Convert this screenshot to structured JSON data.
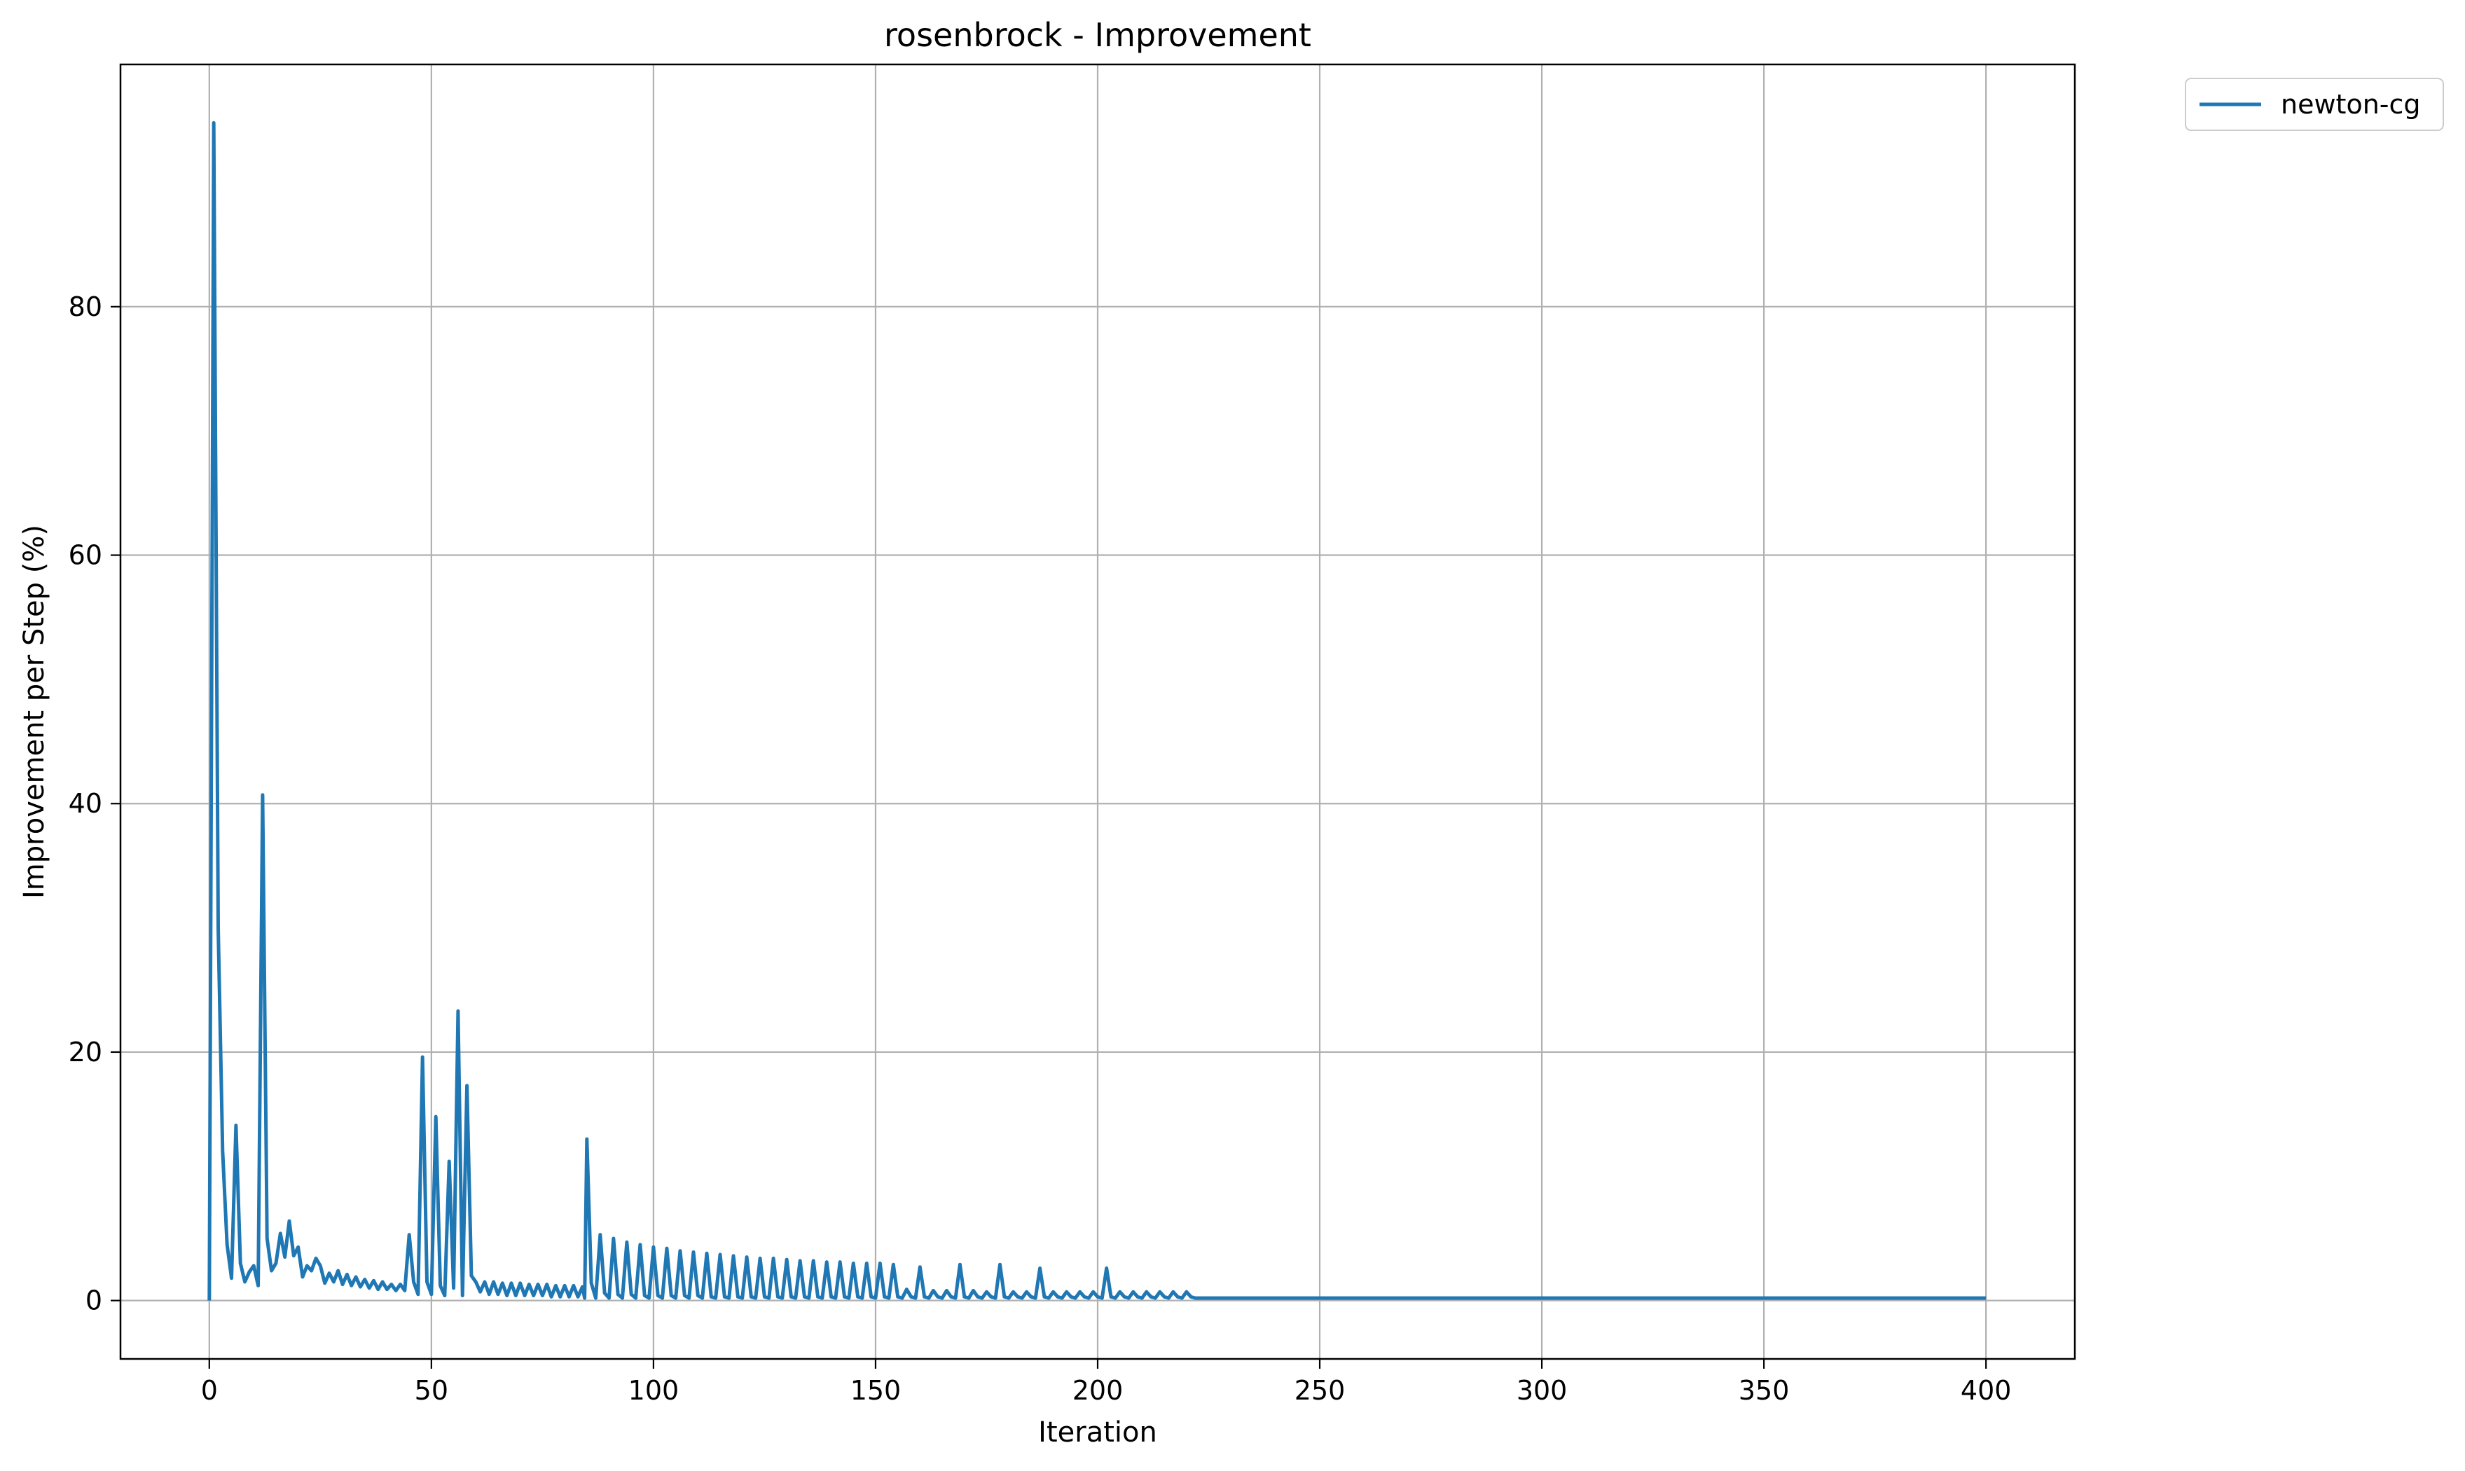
{
  "chart_data": {
    "type": "line",
    "title": "rosenbrock - Improvement",
    "xlabel": "Iteration",
    "ylabel": "Improvement per Step (%)",
    "xlim": [
      -20,
      420
    ],
    "ylim": [
      -4.7,
      99.5
    ],
    "xticks": [
      0,
      50,
      100,
      150,
      200,
      250,
      300,
      350,
      400
    ],
    "yticks": [
      0,
      20,
      40,
      60,
      80
    ],
    "grid": true,
    "legend_position": "outside-top-right",
    "series": [
      {
        "name": "newton-cg",
        "color": "#1f77b4",
        "points": [
          [
            0,
            0
          ],
          [
            1,
            94.8
          ],
          [
            2,
            30
          ],
          [
            3,
            12
          ],
          [
            4,
            4.5
          ],
          [
            5,
            1.8
          ],
          [
            6,
            14.1
          ],
          [
            7,
            3
          ],
          [
            8,
            1.5
          ],
          [
            9,
            2.3
          ],
          [
            10,
            2.8
          ],
          [
            11,
            1.2
          ],
          [
            12,
            40.7
          ],
          [
            13,
            5
          ],
          [
            14,
            2.4
          ],
          [
            15,
            3.0
          ],
          [
            16,
            5.4
          ],
          [
            17,
            3.5
          ],
          [
            18,
            6.4
          ],
          [
            19,
            3.6
          ],
          [
            20,
            4.3
          ],
          [
            21,
            1.9
          ],
          [
            22,
            2.8
          ],
          [
            23,
            2.4
          ],
          [
            24,
            3.4
          ],
          [
            25,
            2.8
          ],
          [
            26,
            1.4
          ],
          [
            27,
            2.2
          ],
          [
            28,
            1.5
          ],
          [
            29,
            2.4
          ],
          [
            30,
            1.3
          ],
          [
            31,
            2.1
          ],
          [
            32,
            1.2
          ],
          [
            33,
            1.9
          ],
          [
            34,
            1.1
          ],
          [
            35,
            1.7
          ],
          [
            36,
            1.0
          ],
          [
            37,
            1.6
          ],
          [
            38,
            0.9
          ],
          [
            39,
            1.5
          ],
          [
            40,
            0.9
          ],
          [
            41,
            1.3
          ],
          [
            42,
            0.8
          ],
          [
            43,
            1.3
          ],
          [
            44,
            0.8
          ],
          [
            45,
            5.3
          ],
          [
            46,
            1.5
          ],
          [
            47,
            0.5
          ],
          [
            48,
            19.6
          ],
          [
            49,
            1.5
          ],
          [
            50,
            0.5
          ],
          [
            51,
            14.8
          ],
          [
            52,
            1.2
          ],
          [
            53,
            0.4
          ],
          [
            54,
            11.2
          ],
          [
            55,
            1.0
          ],
          [
            56,
            23.3
          ],
          [
            57,
            0.4
          ],
          [
            58,
            17.3
          ],
          [
            59,
            2.0
          ],
          [
            60,
            1.5
          ],
          [
            61,
            0.7
          ],
          [
            62,
            1.5
          ],
          [
            63,
            0.5
          ],
          [
            64,
            1.5
          ],
          [
            65,
            0.5
          ],
          [
            66,
            1.4
          ],
          [
            67,
            0.4
          ],
          [
            68,
            1.4
          ],
          [
            69,
            0.4
          ],
          [
            70,
            1.4
          ],
          [
            71,
            0.4
          ],
          [
            72,
            1.3
          ],
          [
            73,
            0.4
          ],
          [
            74,
            1.3
          ],
          [
            75,
            0.4
          ],
          [
            76,
            1.3
          ],
          [
            77,
            0.3
          ],
          [
            78,
            1.2
          ],
          [
            79,
            0.3
          ],
          [
            80,
            1.2
          ],
          [
            81,
            0.3
          ],
          [
            82,
            1.2
          ],
          [
            83,
            0.3
          ],
          [
            84,
            1.1
          ],
          [
            84.5,
            0.2
          ],
          [
            85,
            13.0
          ],
          [
            86,
            1.4
          ],
          [
            87,
            0.2
          ],
          [
            88,
            5.3
          ],
          [
            89,
            0.6
          ],
          [
            90,
            0.2
          ],
          [
            91,
            5.0
          ],
          [
            92,
            0.5
          ],
          [
            93,
            0.2
          ],
          [
            94,
            4.7
          ],
          [
            95,
            0.5
          ],
          [
            96,
            0.2
          ],
          [
            97,
            4.5
          ],
          [
            98,
            0.4
          ],
          [
            99,
            0.2
          ],
          [
            100,
            4.3
          ],
          [
            101,
            0.4
          ],
          [
            102,
            0.2
          ],
          [
            103,
            4.2
          ],
          [
            104,
            0.4
          ],
          [
            105,
            0.2
          ],
          [
            106,
            4.0
          ],
          [
            107,
            0.4
          ],
          [
            108,
            0.2
          ],
          [
            109,
            3.9
          ],
          [
            110,
            0.4
          ],
          [
            111,
            0.2
          ],
          [
            112,
            3.8
          ],
          [
            113,
            0.3
          ],
          [
            114,
            0.2
          ],
          [
            115,
            3.7
          ],
          [
            116,
            0.3
          ],
          [
            117,
            0.2
          ],
          [
            118,
            3.6
          ],
          [
            119,
            0.3
          ],
          [
            120,
            0.2
          ],
          [
            121,
            3.5
          ],
          [
            122,
            0.3
          ],
          [
            123,
            0.2
          ],
          [
            124,
            3.4
          ],
          [
            125,
            0.3
          ],
          [
            126,
            0.2
          ],
          [
            127,
            3.4
          ],
          [
            128,
            0.3
          ],
          [
            129,
            0.2
          ],
          [
            130,
            3.3
          ],
          [
            131,
            0.3
          ],
          [
            132,
            0.2
          ],
          [
            133,
            3.2
          ],
          [
            134,
            0.3
          ],
          [
            135,
            0.2
          ],
          [
            136,
            3.2
          ],
          [
            137,
            0.3
          ],
          [
            138,
            0.2
          ],
          [
            139,
            3.1
          ],
          [
            140,
            0.3
          ],
          [
            141,
            0.2
          ],
          [
            142,
            3.1
          ],
          [
            143,
            0.3
          ],
          [
            144,
            0.2
          ],
          [
            145,
            3.0
          ],
          [
            146,
            0.3
          ],
          [
            147,
            0.2
          ],
          [
            148,
            3.0
          ],
          [
            149,
            0.3
          ],
          [
            150,
            0.2
          ],
          [
            151,
            3.0
          ],
          [
            152,
            0.3
          ],
          [
            153,
            0.2
          ],
          [
            154,
            2.9
          ],
          [
            155,
            0.3
          ],
          [
            156,
            0.2
          ],
          [
            157,
            0.9
          ],
          [
            158,
            0.3
          ],
          [
            159,
            0.2
          ],
          [
            160,
            2.7
          ],
          [
            161,
            0.3
          ],
          [
            162,
            0.2
          ],
          [
            163,
            0.8
          ],
          [
            164,
            0.3
          ],
          [
            165,
            0.2
          ],
          [
            166,
            0.8
          ],
          [
            167,
            0.3
          ],
          [
            168,
            0.2
          ],
          [
            169,
            2.9
          ],
          [
            170,
            0.3
          ],
          [
            171,
            0.2
          ],
          [
            172,
            0.8
          ],
          [
            173,
            0.3
          ],
          [
            174,
            0.2
          ],
          [
            175,
            0.7
          ],
          [
            176,
            0.3
          ],
          [
            177,
            0.2
          ],
          [
            178,
            2.9
          ],
          [
            179,
            0.3
          ],
          [
            180,
            0.2
          ],
          [
            181,
            0.7
          ],
          [
            182,
            0.3
          ],
          [
            183,
            0.2
          ],
          [
            184,
            0.7
          ],
          [
            185,
            0.3
          ],
          [
            186,
            0.2
          ],
          [
            187,
            2.6
          ],
          [
            188,
            0.3
          ],
          [
            189,
            0.2
          ],
          [
            190,
            0.7
          ],
          [
            191,
            0.3
          ],
          [
            192,
            0.2
          ],
          [
            193,
            0.7
          ],
          [
            194,
            0.3
          ],
          [
            195,
            0.2
          ],
          [
            196,
            0.7
          ],
          [
            197,
            0.3
          ],
          [
            198,
            0.2
          ],
          [
            199,
            0.7
          ],
          [
            200,
            0.3
          ],
          [
            201,
            0.2
          ],
          [
            202,
            2.6
          ],
          [
            203,
            0.3
          ],
          [
            204,
            0.2
          ],
          [
            205,
            0.7
          ],
          [
            206,
            0.3
          ],
          [
            207,
            0.2
          ],
          [
            208,
            0.7
          ],
          [
            209,
            0.3
          ],
          [
            210,
            0.2
          ],
          [
            211,
            0.7
          ],
          [
            212,
            0.3
          ],
          [
            213,
            0.2
          ],
          [
            214,
            0.7
          ],
          [
            215,
            0.3
          ],
          [
            216,
            0.2
          ],
          [
            217,
            0.7
          ],
          [
            218,
            0.3
          ],
          [
            219,
            0.2
          ],
          [
            220,
            0.7
          ],
          [
            221,
            0.3
          ],
          [
            222,
            0.2
          ],
          [
            400,
            0.2
          ]
        ]
      }
    ]
  }
}
